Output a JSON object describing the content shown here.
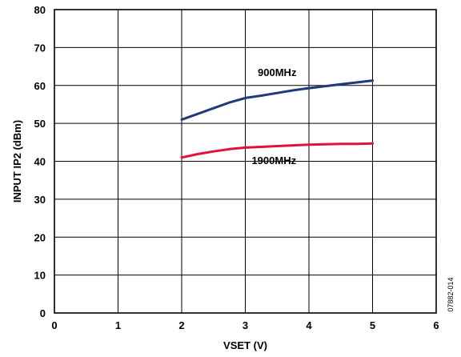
{
  "chart_data": {
    "type": "line",
    "xlabel": "VSET (V)",
    "ylabel": "INPUT IP2 (dBm)",
    "xlim": [
      0,
      6
    ],
    "ylim": [
      0,
      80
    ],
    "xticks": [
      "0",
      "1",
      "2",
      "3",
      "4",
      "5",
      "6"
    ],
    "yticks": [
      "0",
      "10",
      "20",
      "30",
      "40",
      "50",
      "60",
      "70",
      "80"
    ],
    "grid": true,
    "figure_id": "07882-014",
    "series": [
      {
        "name": "900MHz",
        "color": "#1f3a7a",
        "x": [
          2.0,
          2.25,
          2.5,
          2.75,
          3.0,
          3.25,
          3.5,
          3.75,
          4.0,
          4.25,
          4.5,
          4.75,
          5.0
        ],
        "y": [
          51.0,
          52.5,
          54.0,
          55.5,
          56.7,
          57.3,
          58.0,
          58.7,
          59.3,
          59.8,
          60.3,
          60.8,
          61.3
        ]
      },
      {
        "name": "1900MHz",
        "color": "#e0123c",
        "x": [
          2.0,
          2.25,
          2.5,
          2.75,
          3.0,
          3.25,
          3.5,
          3.75,
          4.0,
          4.25,
          4.5,
          4.75,
          5.0
        ],
        "y": [
          41.0,
          41.9,
          42.6,
          43.2,
          43.6,
          43.8,
          44.0,
          44.2,
          44.4,
          44.5,
          44.6,
          44.6,
          44.7
        ]
      }
    ]
  }
}
